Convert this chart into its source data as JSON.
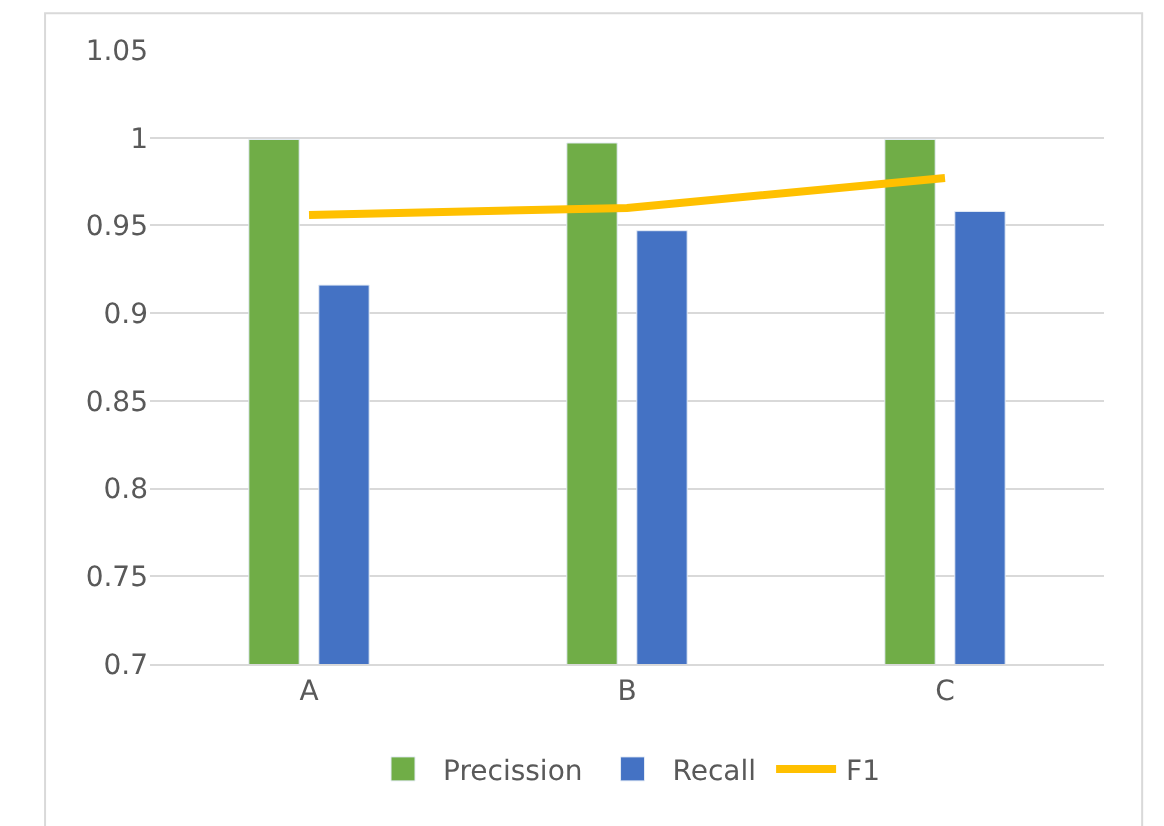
{
  "chart_data": {
    "type": "bar",
    "categories": [
      "A",
      "B",
      "C"
    ],
    "series": [
      {
        "name": "Precission",
        "color": "#70ad47",
        "values": [
          0.999,
          0.997,
          0.999
        ]
      },
      {
        "name": "Recall",
        "color": "#4472c4",
        "values": [
          0.916,
          0.947,
          0.958
        ]
      },
      {
        "name": "F1",
        "color": "#ffc000",
        "type": "line",
        "values": [
          0.956,
          0.96,
          0.977
        ]
      }
    ],
    "ylim": [
      0.7,
      1.05
    ],
    "yticks": [
      0.7,
      0.75,
      0.8,
      0.85,
      0.9,
      0.95,
      1,
      1.05
    ],
    "grid": "y",
    "legend": "bottom",
    "marker": "none"
  }
}
